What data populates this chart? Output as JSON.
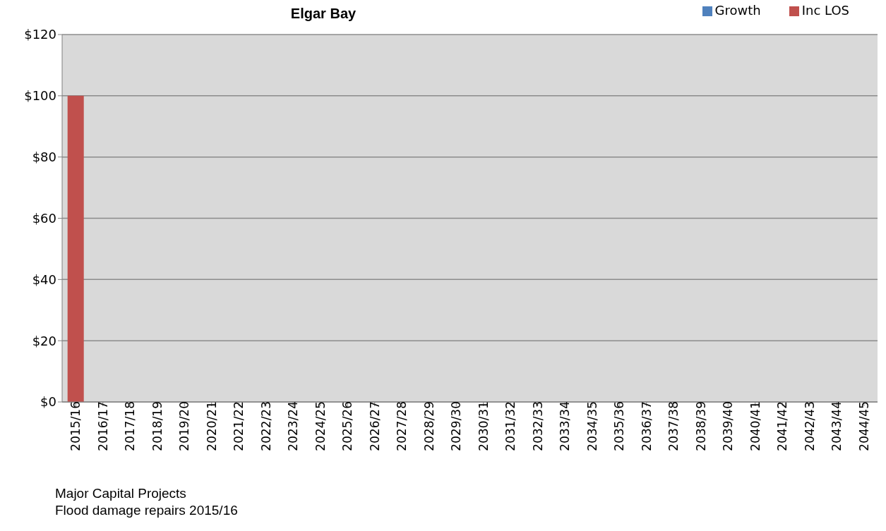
{
  "chart_data": {
    "type": "bar",
    "title": "Elgar Bay",
    "stacked": true,
    "categories": [
      "2015/16",
      "2016/17",
      "2017/18",
      "2018/19",
      "2019/20",
      "2020/21",
      "2021/22",
      "2022/23",
      "2023/24",
      "2024/25",
      "2025/26",
      "2026/27",
      "2027/28",
      "2028/29",
      "2029/30",
      "2030/31",
      "2031/32",
      "2032/33",
      "2033/34",
      "2034/35",
      "2035/36",
      "2036/37",
      "2037/38",
      "2038/39",
      "2039/40",
      "2040/41",
      "2041/42",
      "2042/43",
      "2043/44",
      "2044/45"
    ],
    "series": [
      {
        "name": "Growth",
        "color": "#4f81bd",
        "values": [
          0,
          0,
          0,
          0,
          0,
          0,
          0,
          0,
          0,
          0,
          0,
          0,
          0,
          0,
          0,
          0,
          0,
          0,
          0,
          0,
          0,
          0,
          0,
          0,
          0,
          0,
          0,
          0,
          0,
          0
        ]
      },
      {
        "name": "Inc LOS",
        "color": "#c0504d",
        "values": [
          100,
          0,
          0,
          0,
          0,
          0,
          0,
          0,
          0,
          0,
          0,
          0,
          0,
          0,
          0,
          0,
          0,
          0,
          0,
          0,
          0,
          0,
          0,
          0,
          0,
          0,
          0,
          0,
          0,
          0
        ]
      }
    ],
    "ylim": [
      0,
      120
    ],
    "yticks": [
      {
        "value": 0,
        "label": "$0"
      },
      {
        "value": 20,
        "label": "$20"
      },
      {
        "value": 40,
        "label": "$40"
      },
      {
        "value": 60,
        "label": "$60"
      },
      {
        "value": 80,
        "label": "$80"
      },
      {
        "value": 100,
        "label": "$100"
      },
      {
        "value": 120,
        "label": "$120"
      }
    ],
    "grid": "y",
    "legend": "top right",
    "annotations": [
      "Major Capital Projects",
      "Flood damage repairs  2015/16"
    ]
  }
}
